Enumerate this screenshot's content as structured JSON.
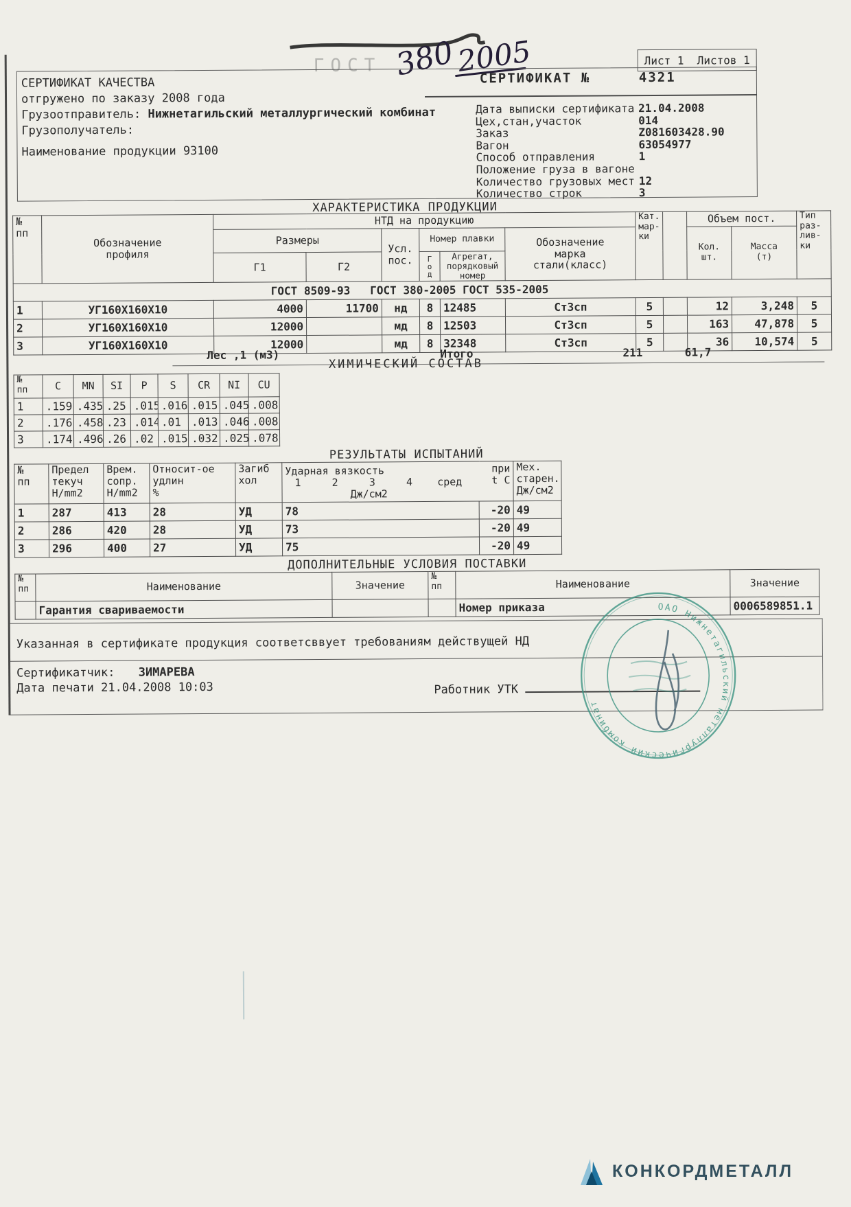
{
  "scan": {
    "handwriting_1": "380",
    "handwriting_2": "2005",
    "faint_stamp": "ГОСТ"
  },
  "header": {
    "sheet_label": "Лист 1  Листов 1",
    "cert_label": "СЕРТИФИКАТ №",
    "cert_number": "4321",
    "left": {
      "title": "СЕРТИФИКАТ КАЧЕСТВА",
      "order_line": "отгружено по заказу 2008 года",
      "shipper_label": "Грузоотправитель:",
      "shipper_value": "Нижнетагильский металлургический комбинат",
      "consignee_label": "Грузополучатель:",
      "product_label": "Наименование продукции 93100"
    },
    "right_rows": [
      {
        "label": "Дата выписки сертификата",
        "value": "21.04.2008"
      },
      {
        "label": "Цех,стан,участок",
        "value": "014"
      },
      {
        "label": "Заказ",
        "value": "Z081603428.90"
      },
      {
        "label": "Вагон",
        "value": "63054977"
      },
      {
        "label": "Способ отправления",
        "value": "1"
      },
      {
        "label": "Положение груза в вагоне",
        "value": ""
      },
      {
        "label": "Количество грузовых мест",
        "value": "12"
      },
      {
        "label": "Количество строк",
        "value": "3"
      }
    ]
  },
  "products": {
    "title": "ХАРАКТЕРИСТИКА ПРОДУКЦИИ",
    "h": {
      "num": "№\nпп",
      "profile": "Обозначение\nпрофиля",
      "ntd": "НТД на продукцию",
      "sizes": "Размеры",
      "g1": "Г1",
      "g2": "Г2",
      "usl": "Усл.\nпос.",
      "melt": "Номер плавки",
      "year": "Г\nо\nд",
      "agg": "Агрегат,\nпорядковый\nномер",
      "steel": "Обозначение\nмарка\nстали(класс)",
      "cat": "Кат.\nмар-\nки",
      "volume": "Объем пост.",
      "qty": "Кол.\nшт.",
      "mass": "Масса\n(т)",
      "cast": "Тип\nраз-\nлив-\nки"
    },
    "gost_line": "ГОСТ 8509-93   ГОСТ 380-2005 ГОСТ 535-2005",
    "rows": [
      [
        "1",
        "УГ160Х160Х10",
        "4000",
        "11700",
        "нд",
        "8",
        "12485",
        "Ст3сп",
        "5",
        "",
        "12",
        "3,248",
        "5"
      ],
      [
        "2",
        "УГ160Х160Х10",
        "12000",
        "",
        "мд",
        "8",
        "12503",
        "Ст3сп",
        "5",
        "",
        "163",
        "47,878",
        "5"
      ],
      [
        "3",
        "УГ160Х160Х10",
        "12000",
        "",
        "мд",
        "8",
        "32348",
        "Ст3сп",
        "5",
        "",
        "36",
        "10,574",
        "5"
      ]
    ],
    "summary": {
      "les": "Лес ,1 (м3)",
      "itogo": "Итого",
      "qty": "211",
      "mass": "61,7"
    }
  },
  "chemistry": {
    "title": "ХИМИЧЕСКИЙ СОСТАВ",
    "h": {
      "num": "№\nпп",
      "c": "C",
      "mn": "MN",
      "si": "SI",
      "p": "P",
      "s": "S",
      "cr": "CR",
      "ni": "NI",
      "cu": "CU"
    },
    "rows": [
      [
        "1",
        ".159",
        ".435",
        ".25",
        ".015",
        ".016",
        ".015",
        ".045",
        ".008"
      ],
      [
        "2",
        ".176",
        ".458",
        ".23",
        ".014",
        ".01",
        ".013",
        ".046",
        ".008"
      ],
      [
        "3",
        ".174",
        ".496",
        ".26",
        ".02",
        ".015",
        ".032",
        ".025",
        ".078"
      ]
    ]
  },
  "tests": {
    "title": "РЕЗУЛЬТАТЫ ИСПЫТАНИЙ",
    "h": {
      "num": "№\nпп",
      "yield": "Предел\nтекуч\nН/mm2",
      "tensile": "Врем.\nсопр.\nН/mm2",
      "elong": "Относит-ое\nудлин\n%",
      "bend": "Загиб\nхол",
      "impact_title": "Ударная вязкость",
      "impact_cols": "1     2     3     4    сред",
      "impact_unit": "Дж/см2",
      "at": "при\nt C",
      "aging": "Мех.\nстарен.\nДж/см2"
    },
    "rows": [
      [
        "1",
        "287",
        "413",
        "28",
        "УД",
        "78",
        "-20",
        "49"
      ],
      [
        "2",
        "286",
        "420",
        "28",
        "УД",
        "73",
        "-20",
        "49"
      ],
      [
        "3",
        "296",
        "400",
        "27",
        "УД",
        "75",
        "-20",
        "49"
      ]
    ]
  },
  "additional": {
    "title": "ДОПОЛНИТЕЛЬНЫЕ УСЛОВИЯ ПОСТАВКИ",
    "h": {
      "num1": "№\nпп",
      "name1": "Наименование",
      "value1": "Значение",
      "num2": "№\nпп",
      "name2": "Наименование",
      "value2": "Значение"
    },
    "rows": [
      [
        "",
        "Гарантия свариваемости",
        "",
        "",
        "Номер приказа",
        "0006589851.1"
      ]
    ]
  },
  "footer": {
    "conformity": "Указанная в сертификате продукция соответсввует требованиям действущей НД",
    "certifier_label": "Сертификатчик:",
    "certifier_name": "ЗИМАРЕВА",
    "print_date": "Дата печати 21.04.2008 10:03",
    "utk_label": "Работник УТК"
  },
  "stamp": {
    "ring_text": "ОАО Нижнетагильский металлургический комбинат",
    "color": "#3d9483"
  },
  "logo": {
    "text": "КОНКОРДМЕТАЛЛ"
  }
}
